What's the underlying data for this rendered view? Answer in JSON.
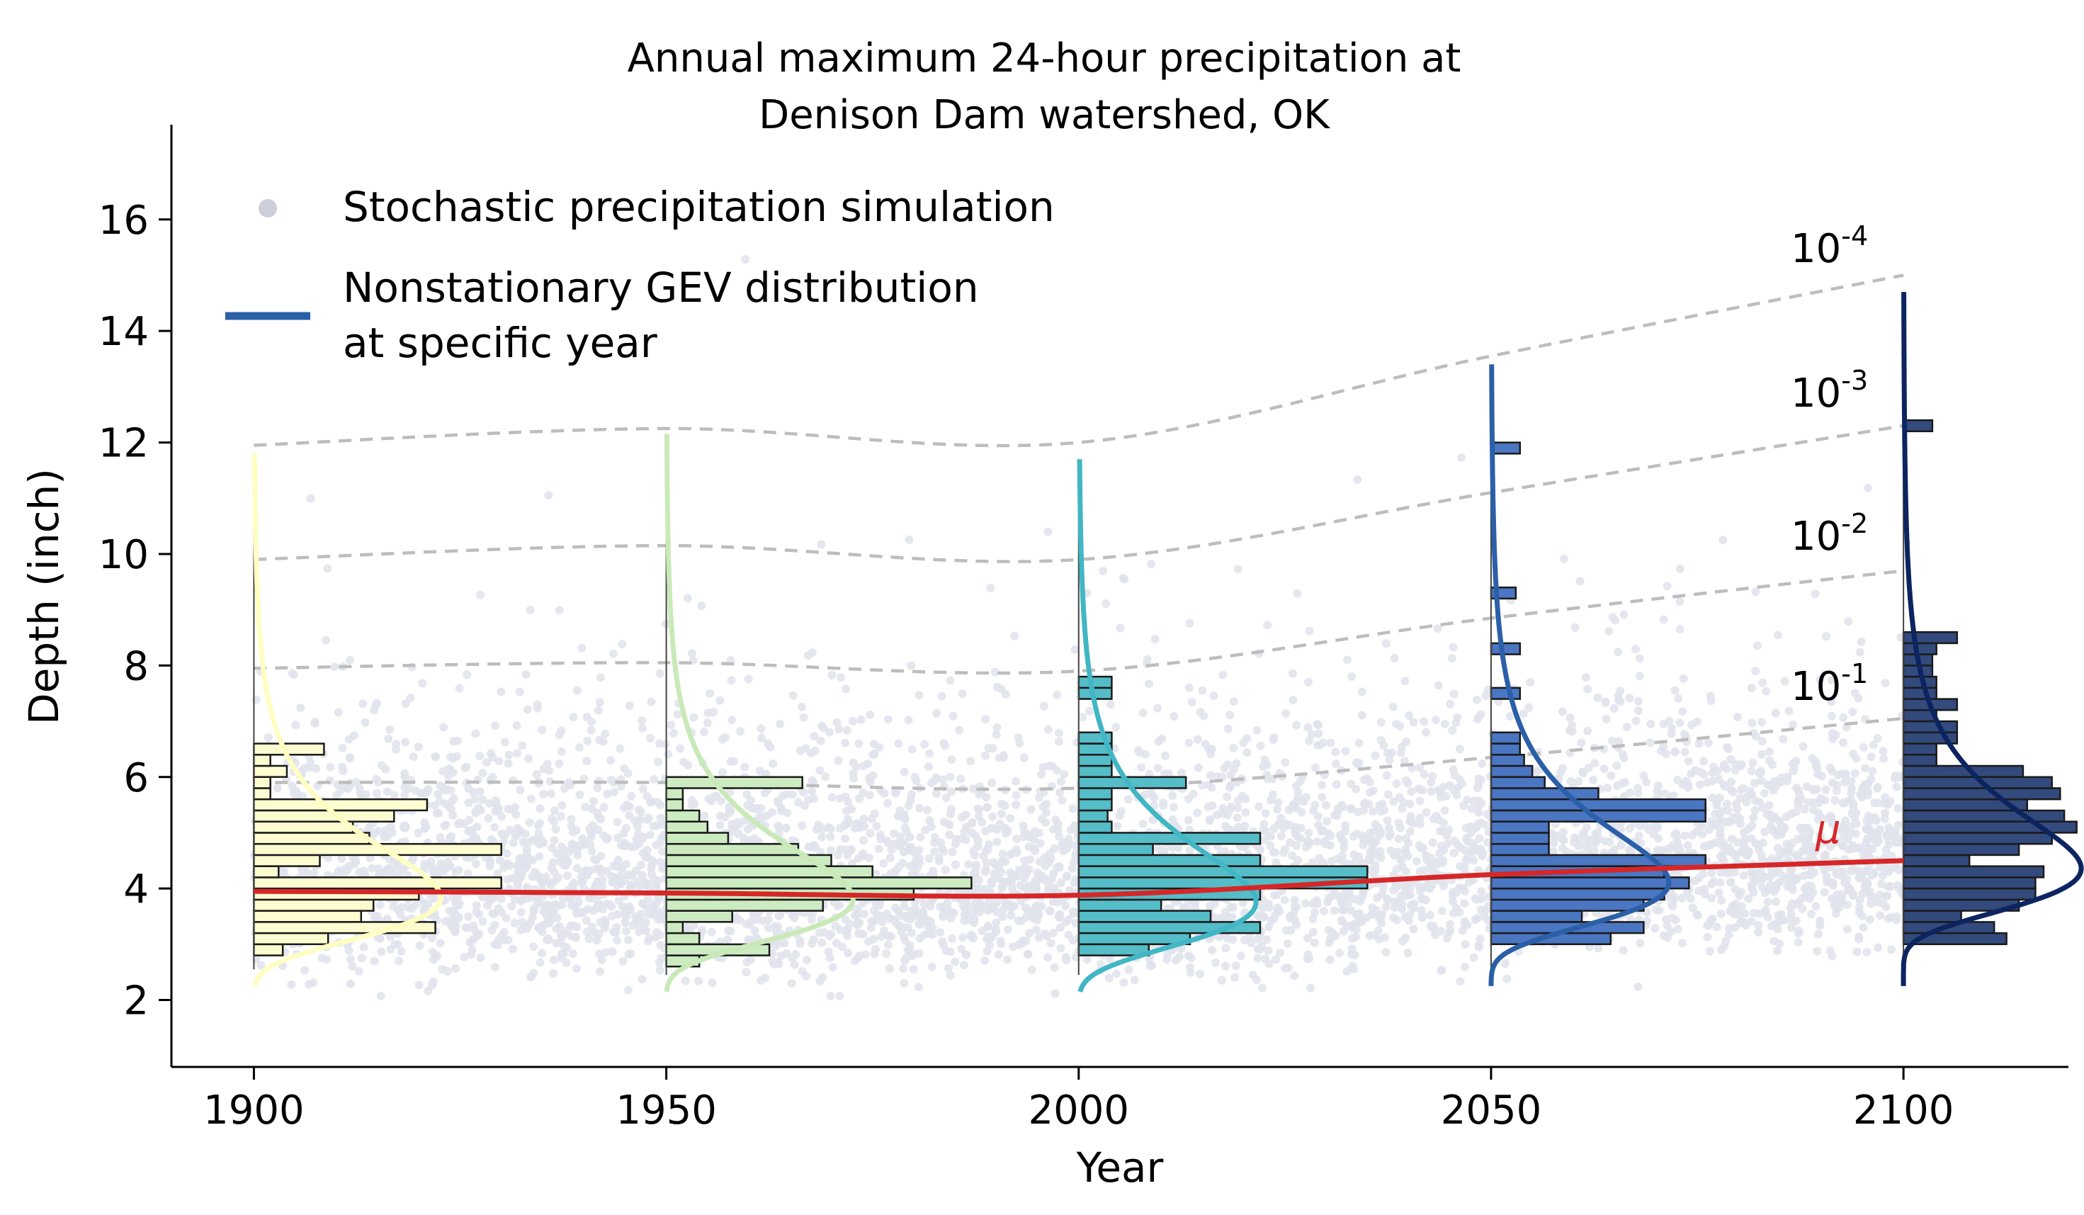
{
  "chart_data": {
    "type": "scatter",
    "title_line1": "Annual maximum 24-hour precipitation at",
    "title_line2": "Denison Dam watershed, OK",
    "xlabel": "Year",
    "ylabel": "Depth (inch)",
    "xlim": [
      1890,
      2120
    ],
    "ylim": [
      0.8,
      17.7
    ],
    "x_ticks": [
      "1900",
      "1950",
      "2000",
      "2050",
      "2100"
    ],
    "y_ticks": [
      "2",
      "4",
      "6",
      "8",
      "10",
      "12",
      "14",
      "16"
    ],
    "legend": {
      "position": "top-left",
      "entries": [
        {
          "label": "Stochastic precipitation simulation",
          "marker": "dot",
          "color": "#cccfd9"
        },
        {
          "label_line1": "Nonstationary GEV distribution",
          "label_line2": "at specific year",
          "marker": "line",
          "color": "#2b5fa8"
        }
      ]
    },
    "mean_line": {
      "label": "μ",
      "color": "#d62728",
      "points": [
        [
          1900,
          3.95
        ],
        [
          1950,
          3.92
        ],
        [
          2000,
          3.88
        ],
        [
          2050,
          4.25
        ],
        [
          2100,
          4.5
        ]
      ]
    },
    "return_level_curves": [
      {
        "label_base": "10",
        "label_exp": "-1",
        "points": [
          [
            1900,
            5.9
          ],
          [
            1950,
            5.9
          ],
          [
            2000,
            5.8
          ],
          [
            2050,
            6.35
          ],
          [
            2100,
            7.05
          ]
        ]
      },
      {
        "label_base": "10",
        "label_exp": "-2",
        "points": [
          [
            1900,
            7.95
          ],
          [
            1950,
            8.05
          ],
          [
            2000,
            7.9
          ],
          [
            2050,
            8.85
          ],
          [
            2100,
            9.7
          ]
        ]
      },
      {
        "label_base": "10",
        "label_exp": "-3",
        "points": [
          [
            1900,
            9.9
          ],
          [
            1950,
            10.15
          ],
          [
            2000,
            9.9
          ],
          [
            2050,
            11.1
          ],
          [
            2100,
            12.3
          ]
        ]
      },
      {
        "label_base": "10",
        "label_exp": "-4",
        "points": [
          [
            1900,
            11.95
          ],
          [
            1950,
            12.25
          ],
          [
            2000,
            12.0
          ],
          [
            2050,
            13.55
          ],
          [
            2100,
            15.0
          ]
        ]
      }
    ],
    "distributions": [
      {
        "year": 1900,
        "color": "#fefec2",
        "fill": "#fdfcd0",
        "gev": {
          "mu": 3.95,
          "sigma": 0.9,
          "xi": 0.13,
          "ymin": 2.25,
          "ymax": 11.8
        },
        "bin_width": 0.2,
        "bins": [
          [
            2.6,
            0
          ],
          [
            2.8,
            3.5
          ],
          [
            3.0,
            9
          ],
          [
            3.2,
            22
          ],
          [
            3.4,
            13
          ],
          [
            3.6,
            14.5
          ],
          [
            3.8,
            20
          ],
          [
            4.0,
            30
          ],
          [
            4.2,
            3
          ],
          [
            4.4,
            8
          ],
          [
            4.6,
            30
          ],
          [
            4.8,
            14
          ],
          [
            5.0,
            12
          ],
          [
            5.2,
            17
          ],
          [
            5.4,
            21
          ],
          [
            5.6,
            2
          ],
          [
            5.8,
            2
          ],
          [
            6.0,
            4
          ],
          [
            6.2,
            2
          ],
          [
            6.4,
            8.5
          ],
          [
            6.6,
            0
          ]
        ]
      },
      {
        "year": 1950,
        "color": "#c9eab8",
        "fill": "#ccebc1",
        "gev": {
          "mu": 3.92,
          "sigma": 0.9,
          "xi": 0.13,
          "ymin": 2.15,
          "ymax": 12.15
        },
        "bin_width": 0.2,
        "bins": [
          [
            2.6,
            4
          ],
          [
            2.8,
            12.5
          ],
          [
            3.0,
            4
          ],
          [
            3.2,
            2
          ],
          [
            3.4,
            8
          ],
          [
            3.6,
            19
          ],
          [
            3.8,
            30
          ],
          [
            4.0,
            37
          ],
          [
            4.2,
            25
          ],
          [
            4.4,
            20
          ],
          [
            4.6,
            16
          ],
          [
            4.8,
            7.5
          ],
          [
            5.0,
            5
          ],
          [
            5.2,
            4
          ],
          [
            5.4,
            2
          ],
          [
            5.6,
            2
          ],
          [
            5.8,
            16.5
          ]
        ]
      },
      {
        "year": 2000,
        "color": "#41b6c4",
        "fill": "#54bdc8",
        "gev": {
          "mu": 3.88,
          "sigma": 0.95,
          "xi": 0.14,
          "ymin": 2.15,
          "ymax": 11.7
        },
        "bin_width": 0.2,
        "bins": [
          [
            2.8,
            8.5
          ],
          [
            3.0,
            13.5
          ],
          [
            3.2,
            22
          ],
          [
            3.4,
            16
          ],
          [
            3.6,
            10
          ],
          [
            3.8,
            22
          ],
          [
            4.0,
            35
          ],
          [
            4.2,
            35
          ],
          [
            4.4,
            22
          ],
          [
            4.6,
            9
          ],
          [
            4.8,
            22
          ],
          [
            5.0,
            4
          ],
          [
            5.2,
            3.5
          ],
          [
            5.4,
            4
          ],
          [
            5.6,
            4
          ],
          [
            5.8,
            13
          ],
          [
            6.0,
            4
          ],
          [
            6.2,
            4
          ],
          [
            6.4,
            4
          ],
          [
            6.6,
            4
          ],
          [
            7.4,
            4
          ],
          [
            7.6,
            4
          ]
        ]
      },
      {
        "year": 2050,
        "color": "#2b5fa8",
        "fill": "#4a76c2",
        "gev": {
          "mu": 4.25,
          "sigma": 0.95,
          "xi": 0.16,
          "ymin": 2.25,
          "ymax": 13.4
        },
        "bin_width": 0.2,
        "bins": [
          [
            3.0,
            14.5
          ],
          [
            3.2,
            18.5
          ],
          [
            3.4,
            11
          ],
          [
            3.6,
            18.5
          ],
          [
            3.8,
            21
          ],
          [
            4.0,
            24
          ],
          [
            4.2,
            21
          ],
          [
            4.4,
            26
          ],
          [
            4.6,
            7
          ],
          [
            4.8,
            7
          ],
          [
            5.0,
            7
          ],
          [
            5.2,
            26
          ],
          [
            5.4,
            26
          ],
          [
            5.6,
            13
          ],
          [
            5.8,
            6.5
          ],
          [
            6.0,
            5
          ],
          [
            6.2,
            4
          ],
          [
            6.4,
            3.5
          ],
          [
            6.6,
            3.5
          ],
          [
            7.4,
            3.5
          ],
          [
            8.2,
            3.5
          ],
          [
            9.2,
            3
          ],
          [
            11.8,
            3.5
          ]
        ]
      },
      {
        "year": 2100,
        "color": "#0c2560",
        "fill": "#334a7d",
        "gev": {
          "mu": 4.5,
          "sigma": 0.95,
          "xi": 0.16,
          "ymin": 2.25,
          "ymax": 14.7
        },
        "bin_width": 0.2,
        "bins": [
          [
            3.0,
            12.5
          ],
          [
            3.2,
            11
          ],
          [
            3.4,
            7
          ],
          [
            3.6,
            14
          ],
          [
            3.8,
            16
          ],
          [
            4.0,
            16
          ],
          [
            4.2,
            17
          ],
          [
            4.4,
            8
          ],
          [
            4.6,
            14
          ],
          [
            4.8,
            18
          ],
          [
            5.0,
            21
          ],
          [
            5.2,
            19.5
          ],
          [
            5.4,
            15
          ],
          [
            5.6,
            19
          ],
          [
            5.8,
            18
          ],
          [
            6.0,
            14.5
          ],
          [
            6.2,
            4
          ],
          [
            6.4,
            4
          ],
          [
            6.6,
            6.5
          ],
          [
            6.8,
            6.5
          ],
          [
            7.0,
            4
          ],
          [
            7.2,
            6.5
          ],
          [
            7.4,
            4
          ],
          [
            7.6,
            4
          ],
          [
            7.8,
            3.5
          ],
          [
            8.0,
            3.5
          ],
          [
            8.2,
            4
          ],
          [
            8.4,
            6.5
          ],
          [
            12.2,
            3.5
          ]
        ]
      }
    ]
  }
}
